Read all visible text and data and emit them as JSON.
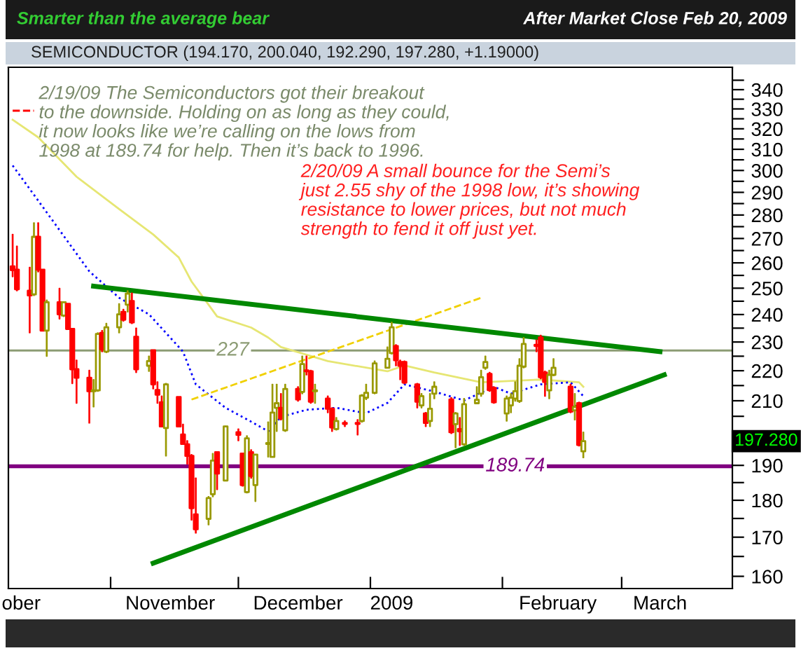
{
  "chart_data": {
    "type": "candlestick",
    "title": "SEMICONDUCTOR (194.170, 200.040, 192.290, 197.280, +1.19000)",
    "subtitle": "After Market Close Feb 20, 2009",
    "annotations": [
      "Smarter than the average bear",
      "2/19/09 The Semiconductors got their breakout\nto the downside. Holding on as long as they could,\nit now looks like we’re calling on the lows from\n1998 at 189.74 for help. Then it’s back to 1996.",
      "2/20/09 A small bounce for the Semi’s\njust 2.55 shy of the 1998 low, it’s showing\nresistance to lower prices, but not much\nstrength to fend it off just yet.",
      "197.280"
    ],
    "x": [
      "2008-10-09",
      "2008-10-10",
      "2008-10-13",
      "2008-10-14",
      "2008-10-15",
      "2008-10-16",
      "2008-10-17",
      "2008-10-20",
      "2008-10-21",
      "2008-10-22",
      "2008-10-23",
      "2008-10-24",
      "2008-10-27",
      "2008-10-28",
      "2008-10-29",
      "2008-10-30",
      "2008-10-31",
      "2008-11-03",
      "2008-11-04",
      "2008-11-05",
      "2008-11-06",
      "2008-11-07",
      "2008-11-10",
      "2008-11-11",
      "2008-11-12",
      "2008-11-13",
      "2008-11-14",
      "2008-11-17",
      "2008-11-18",
      "2008-11-19",
      "2008-11-20",
      "2008-11-21",
      "2008-11-24",
      "2008-11-25",
      "2008-11-26",
      "2008-11-28",
      "2008-12-01",
      "2008-12-02",
      "2008-12-03",
      "2008-12-04",
      "2008-12-05",
      "2008-12-08",
      "2008-12-09",
      "2008-12-10",
      "2008-12-11",
      "2008-12-12",
      "2008-12-15",
      "2008-12-16",
      "2008-12-17",
      "2008-12-18",
      "2008-12-19",
      "2008-12-22",
      "2008-12-23",
      "2008-12-24",
      "2008-12-26",
      "2008-12-29",
      "2008-12-30",
      "2008-12-31",
      "2009-01-02",
      "2009-01-05",
      "2009-01-06",
      "2009-01-07",
      "2009-01-08",
      "2009-01-09",
      "2009-01-12",
      "2009-01-13",
      "2009-01-14",
      "2009-01-15",
      "2009-01-16",
      "2009-01-20",
      "2009-01-21",
      "2009-01-22",
      "2009-01-23",
      "2009-01-26",
      "2009-01-27",
      "2009-01-28",
      "2009-01-29",
      "2009-01-30",
      "2009-02-02",
      "2009-02-03",
      "2009-02-04",
      "2009-02-05",
      "2009-02-06",
      "2009-02-09",
      "2009-02-10",
      "2009-02-11",
      "2009-02-12",
      "2009-02-13",
      "2009-02-17",
      "2009-02-18",
      "2009-02-19",
      "2009-02-20"
    ],
    "ohlc": [
      [
        258.6,
        271.7,
        254.5,
        257.1
      ],
      [
        257.3,
        266.8,
        249.0,
        249.6
      ],
      [
        249.0,
        258.2,
        233.3,
        247.2
      ],
      [
        247.6,
        276.6,
        247.2,
        270.7
      ],
      [
        270.7,
        276.6,
        256.4,
        257.3
      ],
      [
        257.3,
        257.3,
        234.1,
        234.1
      ],
      [
        234.1,
        245.4,
        225.0,
        244.6
      ],
      [
        244.6,
        249.9,
        238.4,
        240.1
      ],
      [
        239.6,
        244.6,
        239.3,
        244.6
      ],
      [
        244.0,
        244.0,
        234.7,
        234.7
      ],
      [
        234.7,
        234.7,
        215.7,
        220.5
      ],
      [
        220.5,
        223.6,
        209.2,
        217.6
      ],
      [
        217.6,
        220.1,
        202.9,
        213.1
      ],
      [
        213.1,
        217.0,
        208.0,
        213.4
      ],
      [
        213.4,
        233.3,
        213.1,
        232.9
      ],
      [
        233.3,
        234.1,
        226.6,
        227.4
      ],
      [
        226.6,
        236.7,
        226.3,
        235.3
      ],
      [
        235.3,
        244.0,
        233.3,
        240.1
      ],
      [
        241.0,
        241.9,
        237.6,
        238.1
      ],
      [
        243.7,
        249.0,
        241.0,
        247.9
      ],
      [
        245.1,
        248.1,
        236.7,
        237.1
      ],
      [
        231.9,
        235.0,
        219.4,
        220.5
      ],
      [
        221.7,
        225.0,
        219.8,
        223.3
      ],
      [
        227.1,
        227.1,
        213.9,
        215.4
      ],
      [
        213.5,
        216.2,
        209.2,
        212.0
      ],
      [
        209.5,
        211.5,
        201.8,
        201.8
      ],
      [
        201.3,
        215.7,
        192.8,
        215.4
      ],
      [
        211.2,
        211.2,
        201.8,
        201.8
      ],
      [
        199.3,
        202.5,
        196.4,
        196.4
      ],
      [
        196.3,
        197.4,
        190.4,
        192.8
      ],
      [
        192.8,
        193.2,
        174.6,
        177.8
      ],
      [
        176.1,
        186.3,
        171.1,
        172.1
      ],
      [
        174.9,
        181.0,
        173.3,
        180.6
      ],
      [
        181.7,
        193.5,
        181.0,
        191.4
      ],
      [
        193.9,
        193.9,
        183.0,
        187.6
      ],
      [
        185.6,
        201.8,
        185.6,
        201.8
      ],
      [
        200.0,
        201.0,
        197.4,
        199.2
      ],
      [
        193.5,
        193.5,
        184.0,
        184.3
      ],
      [
        182.3,
        198.9,
        182.1,
        198.1
      ],
      [
        193.9,
        194.6,
        186.3,
        186.9
      ],
      [
        184.3,
        193.2,
        179.7,
        193.2
      ],
      [
        196.4,
        203.2,
        192.5,
        196.7
      ],
      [
        192.5,
        215.4,
        192.5,
        206.2
      ],
      [
        207.7,
        215.4,
        200.3,
        209.2
      ],
      [
        207.7,
        212.3,
        203.9,
        204.3
      ],
      [
        200.6,
        215.4,
        200.3,
        213.9
      ],
      [
        213.9,
        214.6,
        209.9,
        210.4
      ],
      [
        212.9,
        225.0,
        212.3,
        222.3
      ],
      [
        220.1,
        225.0,
        218.6,
        219.8
      ],
      [
        219.8,
        220.1,
        209.2,
        209.7
      ],
      [
        213.1,
        215.4,
        209.2,
        213.4
      ],
      [
        210.7,
        211.5,
        206.2,
        207.4
      ],
      [
        207.4,
        207.7,
        200.3,
        201.5
      ],
      [
        201.0,
        204.6,
        200.7,
        203.5
      ],
      [
        202.9,
        203.5,
        201.8,
        202.6
      ],
      [
        202.9,
        203.9,
        199.2,
        202.6
      ],
      [
        203.5,
        212.0,
        203.2,
        211.7
      ],
      [
        211.0,
        215.4,
        210.4,
        212.6
      ],
      [
        212.6,
        223.3,
        212.3,
        222.5
      ],
      [
        221.0,
        228.2,
        221.0,
        224.1
      ],
      [
        226.1,
        237.1,
        225.8,
        235.3
      ],
      [
        228.6,
        229.0,
        221.7,
        223.6
      ],
      [
        223.0,
        223.6,
        217.0,
        221.7
      ],
      [
        223.0,
        223.3,
        215.7,
        216.0
      ],
      [
        215.4,
        215.7,
        207.7,
        209.7
      ],
      [
        208.5,
        212.3,
        207.7,
        211.5
      ],
      [
        205.9,
        206.2,
        201.8,
        202.9
      ],
      [
        203.5,
        212.3,
        201.8,
        207.4
      ],
      [
        212.3,
        216.2,
        210.7,
        214.6
      ],
      [
        210.4,
        211.0,
        199.6,
        200.0
      ],
      [
        202.5,
        206.2,
        195.3,
        205.9
      ],
      [
        201.0,
        204.6,
        196.0,
        200.3
      ],
      [
        196.3,
        210.7,
        196.0,
        208.9
      ],
      [
        209.2,
        214.6,
        209.2,
        210.3
      ],
      [
        212.3,
        220.1,
        211.5,
        217.8
      ],
      [
        221.0,
        225.0,
        220.5,
        223.0
      ],
      [
        218.9,
        219.4,
        213.1,
        213.5
      ],
      [
        214.2,
        214.6,
        209.2,
        209.5
      ],
      [
        205.9,
        211.5,
        203.5,
        210.7
      ],
      [
        208.5,
        212.3,
        206.2,
        211.0
      ],
      [
        210.7,
        216.2,
        209.9,
        213.1
      ],
      [
        209.9,
        224.1,
        209.5,
        221.7
      ],
      [
        221.4,
        231.6,
        221.0,
        229.3
      ],
      [
        229.0,
        230.7,
        226.6,
        228.6
      ],
      [
        231.6,
        232.4,
        217.3,
        217.8
      ],
      [
        219.4,
        219.8,
        211.5,
        216.2
      ],
      [
        213.4,
        220.1,
        210.7,
        218.6
      ],
      [
        218.6,
        224.1,
        218.3,
        221.0
      ],
      [
        214.6,
        215.4,
        206.2,
        206.5
      ],
      [
        206.9,
        212.3,
        203.9,
        208.0
      ],
      [
        209.2,
        209.5,
        195.8,
        196.1
      ],
      [
        194.17,
        200.04,
        192.29,
        197.28
      ]
    ],
    "colors": [
      "#ff0000",
      "#ff0000",
      "#ff0000",
      "#999900",
      "#ff0000",
      "#ff0000",
      "#999900",
      "#ff0000",
      "#999900",
      "#ff0000",
      "#ff0000",
      "#ff0000",
      "#ff0000",
      "#999900",
      "#999900",
      "#ff0000",
      "#999900",
      "#999900",
      "#ff0000",
      "#999900",
      "#ff0000",
      "#ff0000",
      "#999900",
      "#ff0000",
      "#ff0000",
      "#ff0000",
      "#999900",
      "#ff0000",
      "#ff0000",
      "#ff0000",
      "#ff0000",
      "#ff0000",
      "#999900",
      "#999900",
      "#ff0000",
      "#999900",
      "#ff0000",
      "#ff0000",
      "#999900",
      "#ff0000",
      "#999900",
      "#999900",
      "#999900",
      "#999900",
      "#ff0000",
      "#999900",
      "#ff0000",
      "#999900",
      "#ff0000",
      "#ff0000",
      "#999900",
      "#ff0000",
      "#ff0000",
      "#999900",
      "#ff0000",
      "#ff0000",
      "#999900",
      "#999900",
      "#999900",
      "#999900",
      "#999900",
      "#ff0000",
      "#ff0000",
      "#ff0000",
      "#ff0000",
      "#999900",
      "#ff0000",
      "#999900",
      "#999900",
      "#ff0000",
      "#999900",
      "#ff0000",
      "#999900",
      "#999900",
      "#999900",
      "#999900",
      "#ff0000",
      "#ff0000",
      "#999900",
      "#999900",
      "#999900",
      "#999900",
      "#999900",
      "#ff0000",
      "#ff0000",
      "#ff0000",
      "#999900",
      "#999900",
      "#ff0000",
      "#999900",
      "#ff0000",
      "#999900"
    ],
    "series": [
      {
        "type": "line",
        "color": "#e6e673",
        "line_style": "solid",
        "x": [
          "2008-10-09",
          "2008-10-15",
          "2008-10-24",
          "2008-11-03",
          "2008-11-11",
          "2008-11-17",
          "2008-11-20",
          "2008-11-24",
          "2008-11-26",
          "2008-12-04",
          "2008-12-08",
          "2008-12-11",
          "2008-12-22",
          "2009-01-05",
          "2009-01-09",
          "2009-01-16",
          "2009-01-27",
          "2009-02-10",
          "2009-02-19",
          "2009-02-20"
        ],
        "values": [
          324.5,
          315.8,
          297.1,
          282.6,
          271.7,
          262.2,
          252.6,
          243.7,
          239.3,
          235.2,
          231.6,
          228.2,
          223.3,
          219.8,
          221.8,
          219.4,
          216.1,
          217.0,
          216.1,
          214.6
        ]
      },
      {
        "type": "line",
        "color": "#0000ff",
        "line_style": "dotted",
        "x": [
          "2008-10-09",
          "2008-10-16",
          "2008-10-27",
          "2008-11-03",
          "2008-11-10",
          "2008-11-18",
          "2008-11-21",
          "2008-11-28",
          "2008-12-04",
          "2008-12-08",
          "2008-12-11",
          "2008-12-17",
          "2008-12-24",
          "2008-12-31",
          "2009-01-05",
          "2009-01-09",
          "2009-01-16",
          "2009-01-23",
          "2009-01-30",
          "2009-02-03",
          "2009-02-10",
          "2009-02-17",
          "2009-02-20"
        ],
        "values": [
          302.3,
          283.7,
          256.6,
          246.3,
          240.1,
          226.6,
          215.4,
          207.7,
          203.3,
          200.3,
          204.8,
          207.1,
          207.7,
          206.0,
          209.3,
          215.4,
          213.0,
          210.1,
          214.6,
          212.3,
          215.4,
          216.1,
          211.5
        ]
      },
      {
        "type": "line",
        "color": "#f0d000",
        "line_style": "dashed",
        "x": [
          "2008-11-20",
          "2009-01-27"
        ],
        "values": [
          210.4,
          246.3
        ]
      },
      {
        "type": "line",
        "color": "#ff0000",
        "line_style": "dashed",
        "x": [
          "2008-10-09",
          "2008-10-14"
        ],
        "values": [
          329.1,
          329.1
        ]
      },
      {
        "type": "line",
        "color": "#008800",
        "line_style": "solid",
        "x": [
          "2008-10-28",
          "2009-03-10"
        ],
        "values": [
          250.8,
          226.6
        ]
      },
      {
        "type": "line",
        "color": "#008800",
        "line_style": "solid",
        "x": [
          "2008-11-11",
          "2009-03-11"
        ],
        "values": [
          163.3,
          218.6
        ]
      }
    ],
    "ref_lines": [
      {
        "axis": "y",
        "value": 227,
        "label": "227",
        "color": "#8c9c74"
      },
      {
        "axis": "y",
        "value": 189.74,
        "label": "189.74",
        "color": "#800080"
      }
    ],
    "log": true,
    "grid": false,
    "xlim": [
      "2008-10-08",
      "2009-03-27"
    ],
    "xticks": [
      {
        "value": "2008-10-11",
        "label": "ober"
      },
      {
        "value": "2008-11-01",
        "label": null
      },
      {
        "value": "2008-11-15",
        "label": "November"
      },
      {
        "value": "2008-12-01",
        "label": null
      },
      {
        "value": "2008-12-15",
        "label": "December"
      },
      {
        "value": "2009-01-01",
        "label": null
      },
      {
        "value": "2009-01-06",
        "label": "2009"
      },
      {
        "value": "2009-02-01",
        "label": null
      },
      {
        "value": "2009-02-14",
        "label": "February"
      },
      {
        "value": "2009-03-01",
        "label": null
      },
      {
        "value": "2009-03-10",
        "label": "March"
      }
    ],
    "ylim": [
      157,
      352
    ],
    "yticks": [
      160,
      {
        "value": 165,
        "label": null
      },
      170,
      {
        "value": 175,
        "label": null
      },
      180,
      {
        "value": 185,
        "label": null
      },
      190,
      {
        "value": 195,
        "label": null
      },
      {
        "value": 200,
        "label": null
      },
      {
        "value": 205,
        "label": null
      },
      210,
      {
        "value": 215,
        "label": null
      },
      220,
      {
        "value": 225,
        "label": null
      },
      230,
      {
        "value": 235,
        "label": null
      },
      240,
      {
        "value": 245,
        "label": null
      },
      250,
      {
        "value": 255,
        "label": null
      },
      260,
      {
        "value": 265,
        "label": null
      },
      270,
      {
        "value": 275,
        "label": null
      },
      280,
      {
        "value": 285,
        "label": null
      },
      290,
      {
        "value": 295,
        "label": null
      },
      300,
      {
        "value": 305,
        "label": null
      },
      310,
      {
        "value": 315,
        "label": null
      },
      320,
      {
        "value": 325,
        "label": null
      },
      330,
      {
        "value": 335,
        "label": null
      },
      340,
      {
        "value": 345,
        "label": null
      }
    ]
  }
}
